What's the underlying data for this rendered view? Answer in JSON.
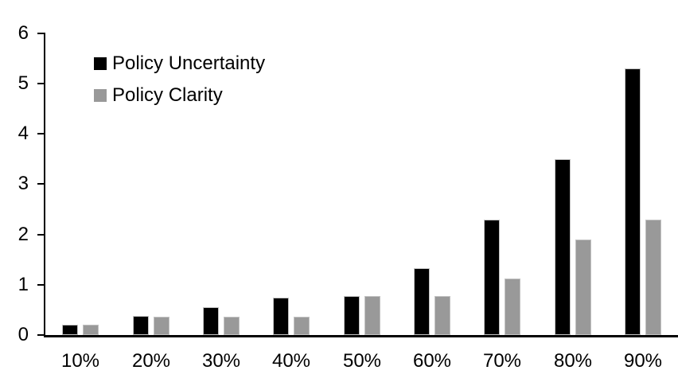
{
  "chart_data": {
    "type": "bar",
    "title": "",
    "xlabel": "",
    "ylabel": "",
    "categories": [
      "10%",
      "20%",
      "30%",
      "40%",
      "50%",
      "60%",
      "70%",
      "80%",
      "90%"
    ],
    "series": [
      {
        "name": "Policy Uncertainty",
        "color": "#000000",
        "values": [
          0.2,
          0.38,
          0.55,
          0.75,
          0.77,
          1.33,
          2.3,
          3.5,
          5.3
        ]
      },
      {
        "name": "Policy Clarity",
        "color": "#999999",
        "values": [
          0.2,
          0.37,
          0.37,
          0.37,
          0.77,
          0.77,
          1.13,
          1.9,
          2.3
        ]
      }
    ],
    "ylim": [
      0,
      6
    ],
    "yticks": [
      0,
      1,
      2,
      3,
      4,
      5,
      6
    ],
    "grid": false,
    "legend_position": "inside-top-left",
    "axis_color": "#000000",
    "background_color": "#ffffff"
  }
}
